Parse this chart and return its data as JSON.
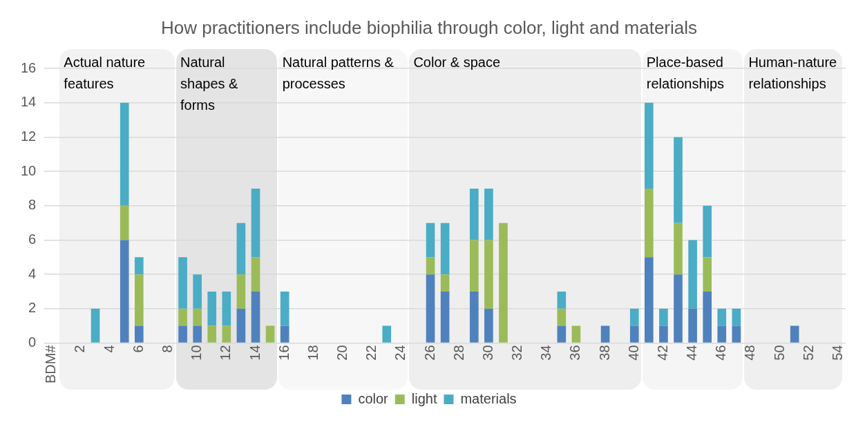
{
  "chart_data": {
    "type": "bar",
    "title": "How practitioners include biophilia through color, light and materials",
    "categories": [
      "BDM#",
      null,
      "2",
      null,
      "4",
      null,
      "6",
      null,
      "8",
      null,
      "10",
      null,
      "12",
      null,
      "14",
      null,
      "16",
      null,
      "18",
      null,
      "20",
      null,
      "22",
      null,
      "24",
      null,
      "26",
      null,
      "28",
      null,
      "30",
      null,
      "32",
      null,
      "34",
      null,
      "36",
      null,
      "38",
      null,
      "40",
      null,
      "42",
      null,
      "44",
      null,
      "46",
      null,
      "48",
      null,
      "50",
      null,
      "52",
      null,
      "54"
    ],
    "series": [
      {
        "name": "color",
        "color": "#4f81bd",
        "values": [
          0,
          0,
          0,
          0,
          0,
          6,
          1,
          0,
          0,
          1,
          1,
          0,
          0,
          2,
          3,
          0,
          1,
          0,
          0,
          0,
          0,
          0,
          0,
          0,
          0,
          0,
          4,
          3,
          0,
          3,
          2,
          0,
          0,
          0,
          0,
          1,
          0,
          0,
          1,
          0,
          1,
          5,
          1,
          4,
          2,
          3,
          1,
          1,
          0,
          0,
          0,
          1,
          0,
          0,
          0
        ]
      },
      {
        "name": "light",
        "color": "#9bbb59",
        "values": [
          0,
          0,
          0,
          0,
          0,
          2,
          3,
          0,
          0,
          1,
          1,
          1,
          1,
          2,
          2,
          1,
          0,
          0,
          0,
          0,
          0,
          0,
          0,
          0,
          0,
          0,
          1,
          1,
          0,
          3,
          4,
          7,
          0,
          0,
          0,
          1,
          1,
          0,
          0,
          0,
          0,
          4,
          0,
          3,
          0,
          2,
          0,
          0,
          0,
          0,
          0,
          0,
          0,
          0,
          0
        ]
      },
      {
        "name": "materials",
        "color": "#4bacc6",
        "values": [
          0,
          0,
          0,
          2,
          0,
          6,
          1,
          0,
          0,
          3,
          2,
          2,
          2,
          3,
          4,
          0,
          2,
          0,
          0,
          0,
          0,
          0,
          0,
          1,
          0,
          0,
          2,
          3,
          0,
          3,
          3,
          0,
          0,
          0,
          0,
          1,
          0,
          0,
          0,
          0,
          1,
          5,
          1,
          5,
          4,
          3,
          1,
          1,
          0,
          0,
          0,
          0,
          0,
          0,
          0
        ]
      }
    ],
    "stacked": true,
    "ylim": [
      0,
      16
    ],
    "yticks": [
      0,
      2,
      4,
      6,
      8,
      10,
      12,
      14,
      16
    ],
    "grid": "y",
    "legend": "bottom",
    "annotations": [
      "Actual nature features",
      "Natural shapes & forms",
      "Natural patterns & processes",
      "Color & space",
      "Place-based relationships",
      "Human-nature relationships"
    ]
  }
}
